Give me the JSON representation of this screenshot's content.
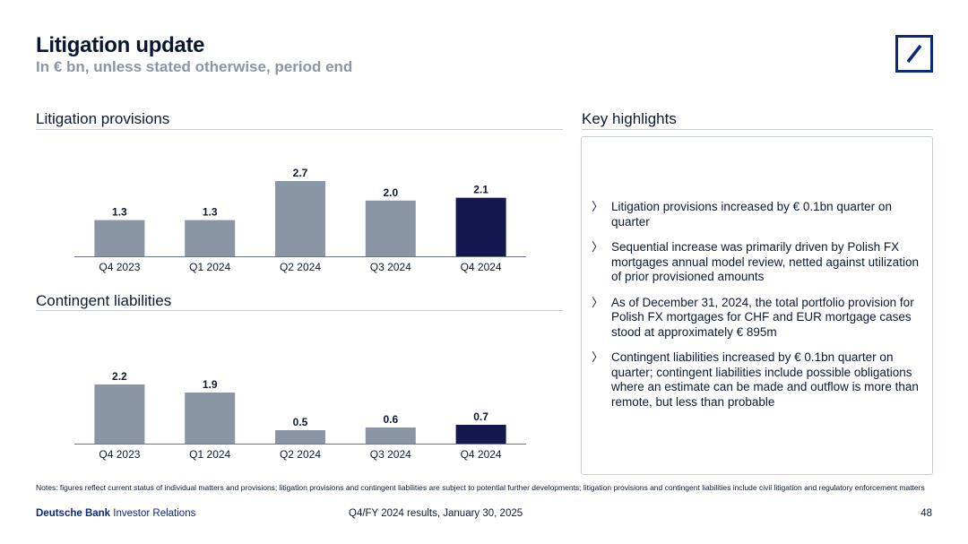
{
  "header": {
    "title": "Litigation update",
    "subtitle": "In € bn, unless stated otherwise, period end"
  },
  "logo": {
    "icon": "deutsche-bank-slash-square-icon",
    "color": "#0b2a7a"
  },
  "sections": {
    "provisions_title": "Litigation provisions",
    "contingent_title": "Contingent liabilities",
    "highlights_title": "Key highlights"
  },
  "colors": {
    "bar_default": "#8a96a6",
    "bar_highlight": "#14184f",
    "rule": "#c9ced6"
  },
  "chart_data": [
    {
      "type": "bar",
      "title": "Litigation provisions",
      "categories": [
        "Q4 2023",
        "Q1 2024",
        "Q2 2024",
        "Q3 2024",
        "Q4 2024"
      ],
      "values": [
        1.3,
        1.3,
        2.7,
        2.0,
        2.1
      ],
      "value_labels": [
        "1.3",
        "1.3",
        "2.7",
        "2.0",
        "2.1"
      ],
      "highlight_index": 4,
      "ylim": [
        0,
        2.7
      ],
      "xlabel": "",
      "ylabel": "",
      "grid": false
    },
    {
      "type": "bar",
      "title": "Contingent liabilities",
      "categories": [
        "Q4 2023",
        "Q1 2024",
        "Q2 2024",
        "Q3 2024",
        "Q4 2024"
      ],
      "values": [
        2.2,
        1.9,
        0.5,
        0.6,
        0.7
      ],
      "value_labels": [
        "2.2",
        "1.9",
        "0.5",
        "0.6",
        "0.7"
      ],
      "highlight_index": 4,
      "ylim": [
        0,
        2.2
      ],
      "xlabel": "",
      "ylabel": "",
      "grid": false
    }
  ],
  "highlights": {
    "bullet_icon": "chevron-right-icon",
    "bullet_glyph": "〉",
    "items": [
      "Litigation provisions increased by € 0.1bn quarter on quarter",
      "Sequential increase was primarily driven by Polish FX mortgages annual model review, netted against utilization of prior provisioned amounts",
      "As of December 31, 2024, the total portfolio provision for Polish FX mortgages for CHF and EUR mortgage cases stood at approximately € 895m",
      "Contingent liabilities increased by € 0.1bn quarter on quarter; contingent liabilities include possible obligations where an estimate can be made and outflow is more than remote, but less than probable"
    ]
  },
  "notes": "Notes: figures reflect current status of individual matters and provisions; litigation provisions and contingent liabilities are subject to potential further developments; litigation provisions and contingent liabilities include civil litigation and regulatory enforcement matters",
  "footer": {
    "brand": "Deutsche Bank",
    "division": "Investor Relations",
    "event": "Q4/FY 2024 results, January 30, 2025",
    "page_number": "48"
  }
}
